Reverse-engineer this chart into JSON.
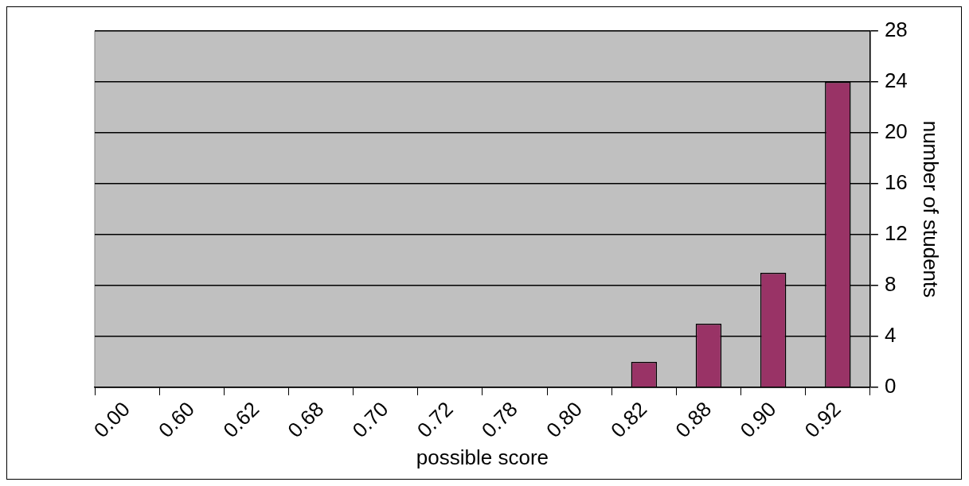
{
  "chart_data": {
    "type": "bar",
    "xlabel": "possible score",
    "ylabel": "number of students",
    "categories": [
      "0.00",
      "0.60",
      "0.62",
      "0.68",
      "0.70",
      "0.72",
      "0.78",
      "0.80",
      "0.82",
      "0.88",
      "0.90",
      "0.92"
    ],
    "values": [
      0,
      0,
      0,
      0,
      0,
      0,
      0,
      0,
      2,
      5,
      9,
      24
    ],
    "color": "#993366",
    "ylim": [
      0,
      28
    ],
    "yticks": [
      0,
      4,
      8,
      12,
      16,
      20,
      24,
      28
    ],
    "grid": "y",
    "legend": false
  }
}
